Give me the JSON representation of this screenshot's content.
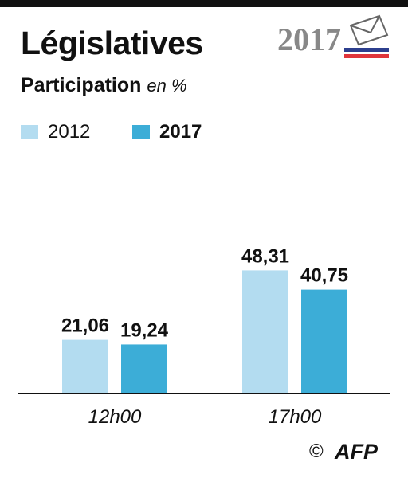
{
  "header": {
    "title": "Législatives",
    "subtitle_main": "Participation",
    "subtitle_unit": "en %",
    "badge_year": "2017"
  },
  "legend": [
    {
      "label": "2012",
      "color": "#b3dcf0"
    },
    {
      "label": "2017",
      "color": "#3cadd7"
    }
  ],
  "chart_data": {
    "type": "bar",
    "categories": [
      "12h00",
      "17h00"
    ],
    "series": [
      {
        "name": "2012",
        "values": [
          21.06,
          48.31
        ],
        "color": "#b3dcf0"
      },
      {
        "name": "2017",
        "values": [
          19.24,
          40.75
        ],
        "color": "#3cadd7"
      }
    ],
    "value_labels": [
      [
        "21,06",
        "48,31"
      ],
      [
        "19,24",
        "40,75"
      ]
    ],
    "ylim": [
      0,
      50
    ],
    "grid": false,
    "legend_position": "top-left"
  },
  "footer": {
    "copyright": "©",
    "agency": "AFP"
  },
  "colors": {
    "dark": "#111111",
    "flag_blue": "#2d3f8e",
    "flag_red": "#e0353b",
    "logo_gray": "#888888"
  }
}
